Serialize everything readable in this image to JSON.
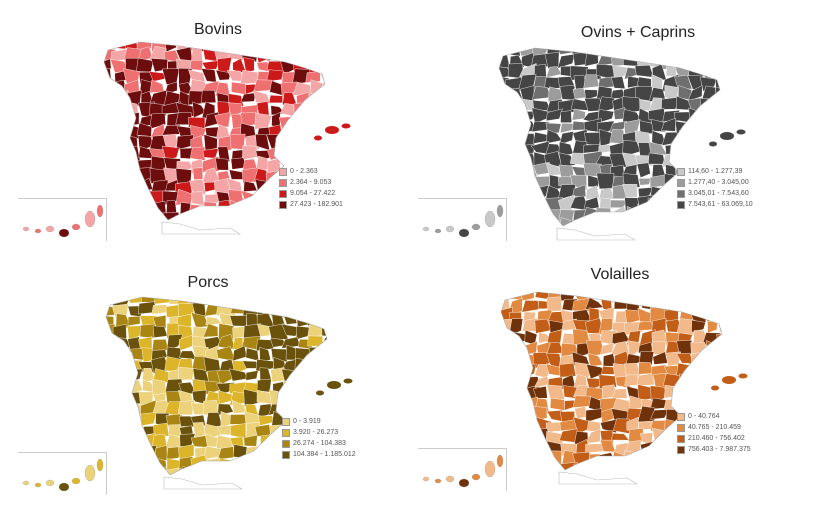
{
  "maps": [
    {
      "title": "Bovins",
      "palette": [
        "#f4a6a6",
        "#ee7070",
        "#cc1a1a",
        "#6e0d0d"
      ],
      "legend": [
        "0 - 2.363",
        "2.364 - 9.053",
        "9.054 - 27.422",
        "27.423 - 182.901"
      ]
    },
    {
      "title": "Ovins + Caprins",
      "palette": [
        "#c9c9c9",
        "#9c9c9c",
        "#6f6f6f",
        "#454545"
      ],
      "legend": [
        "114,60 - 1.277,39",
        "1.277,40 - 3.045,00",
        "3.045,01 - 7.543,60",
        "7.543,61 - 63.069,10"
      ]
    },
    {
      "title": "Porcs",
      "palette": [
        "#ecd27a",
        "#ddb52a",
        "#a98513",
        "#6a520c"
      ],
      "legend": [
        "0 - 3.919",
        "3.920 - 26.273",
        "26.274 - 104.383",
        "104.384 - 1.185.012"
      ]
    },
    {
      "title": "Volailles",
      "palette": [
        "#f2b98a",
        "#e28a42",
        "#c25e18",
        "#6f320a"
      ],
      "legend": [
        "0 - 40.764",
        "40.765 - 210.459",
        "210.460 - 756.402",
        "756.403 - 7.987.375"
      ]
    }
  ]
}
